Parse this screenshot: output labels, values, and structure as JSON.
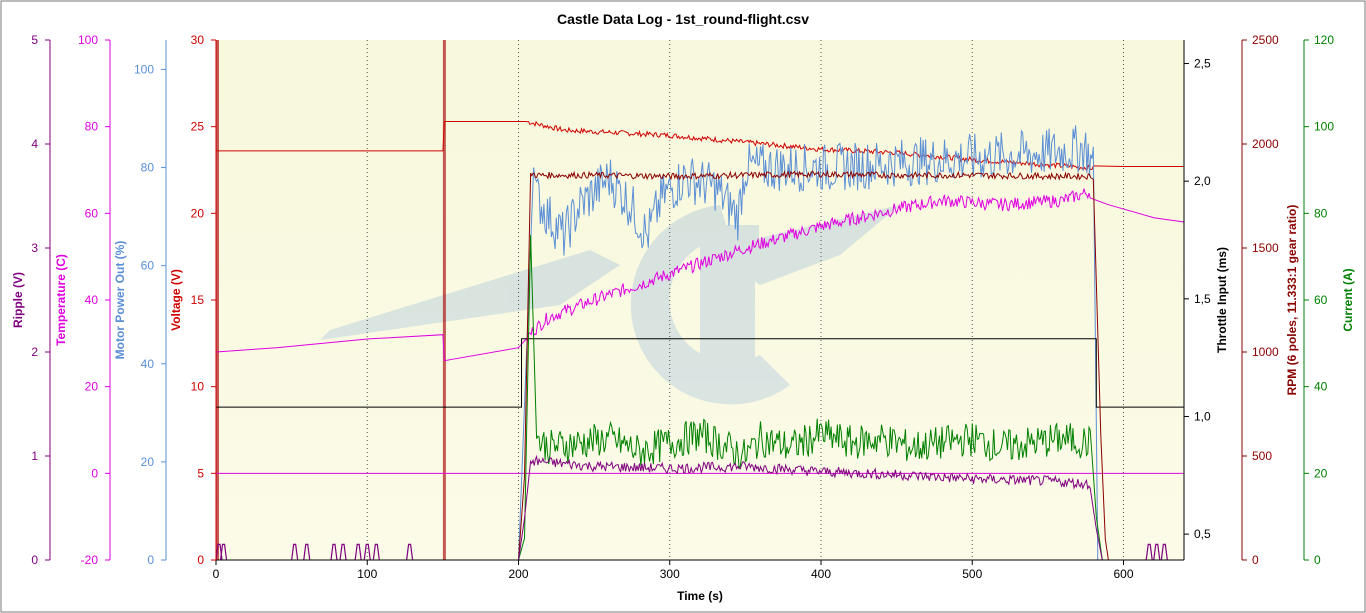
{
  "chart_data": {
    "type": "line",
    "title": "Castle Data Log - 1st_round-flight.csv",
    "xlabel": "Time (s)",
    "xlim": [
      0,
      640
    ],
    "xticks": [
      0,
      100,
      200,
      300,
      400,
      500,
      600
    ],
    "colors": {
      "ripple": "#800080",
      "temperature": "#e000e0",
      "power": "#5b8fd6",
      "voltage": "#d00000",
      "throttle": "#000000",
      "rpm": "#8b0000",
      "current": "#008000"
    },
    "left_axes": [
      {
        "id": "ripple",
        "label": "Ripple (V)",
        "min": 0,
        "max": 5,
        "ticks": [
          "0",
          "1",
          "2",
          "3",
          "4",
          "5"
        ],
        "color": "#800080"
      },
      {
        "id": "temperature",
        "label": "Temperature (C)",
        "min": -20,
        "max": 100,
        "ticks": [
          "-20",
          "0",
          "20",
          "40",
          "60",
          "80",
          "100"
        ],
        "color": "#e000e0"
      },
      {
        "id": "power",
        "label": "Motor Power Out (%)",
        "min": 0,
        "max": 106,
        "ticks": [
          "0",
          "20",
          "40",
          "60",
          "80",
          "100"
        ],
        "color": "#5b8fd6"
      },
      {
        "id": "voltage",
        "label": "Voltage (V)",
        "min": 0,
        "max": 30,
        "ticks": [
          "0",
          "5",
          "10",
          "15",
          "20",
          "25",
          "30"
        ],
        "color": "#d00000"
      }
    ],
    "right_axes": [
      {
        "id": "throttle",
        "label": "Throttle Input (ms)",
        "min": 0.39,
        "max": 2.6,
        "ticks": [
          "0,5",
          "1,0",
          "1,5",
          "2,0",
          "2,5"
        ],
        "tick_values": [
          0.5,
          1.0,
          1.5,
          2.0,
          2.5
        ],
        "color": "#000000"
      },
      {
        "id": "rpm",
        "label": "RPM (6 poles, 11.333:1 gear ratio)",
        "min": 0,
        "max": 2500,
        "ticks": [
          "0",
          "500",
          "1000",
          "1500",
          "2000",
          "2500"
        ],
        "color": "#8b0000"
      },
      {
        "id": "current",
        "label": "Current (A)",
        "min": 0,
        "max": 120,
        "ticks": [
          "0",
          "20",
          "40",
          "60",
          "80",
          "100",
          "120"
        ],
        "color": "#008000"
      }
    ],
    "markers": [
      1,
      151
    ],
    "series": [
      {
        "name": "Voltage",
        "axis": "voltage",
        "points": [
          [
            0,
            23.6
          ],
          [
            150,
            23.6
          ],
          [
            151,
            25.3
          ],
          [
            205,
            25.3
          ],
          [
            230,
            24.8
          ],
          [
            300,
            24.5
          ],
          [
            350,
            24.1
          ],
          [
            400,
            23.7
          ],
          [
            450,
            23.5
          ],
          [
            500,
            23.1
          ],
          [
            550,
            22.8
          ],
          [
            580,
            22.6
          ],
          [
            600,
            22.7
          ],
          [
            640,
            22.7
          ]
        ]
      },
      {
        "name": "Temperature",
        "axis": "temperature",
        "points": [
          [
            0,
            28
          ],
          [
            40,
            29
          ],
          [
            100,
            31
          ],
          [
            150,
            32
          ],
          [
            151,
            26
          ],
          [
            200,
            29
          ],
          [
            205,
            31
          ],
          [
            210,
            33
          ],
          [
            220,
            36
          ],
          [
            250,
            40
          ],
          [
            300,
            46
          ],
          [
            350,
            52
          ],
          [
            400,
            57
          ],
          [
            450,
            61
          ],
          [
            480,
            63
          ],
          [
            520,
            62
          ],
          [
            560,
            63
          ],
          [
            578,
            65
          ],
          [
            590,
            62
          ],
          [
            620,
            59
          ],
          [
            640,
            58
          ]
        ]
      },
      {
        "name": "Motor Power Out",
        "axis": "power",
        "points": [
          [
            0,
            0
          ],
          [
            200,
            0
          ],
          [
            205,
            40
          ],
          [
            210,
            80
          ],
          [
            212,
            74
          ],
          [
            220,
            70
          ],
          [
            230,
            66
          ],
          [
            240,
            72
          ],
          [
            260,
            78
          ],
          [
            275,
            72
          ],
          [
            285,
            66
          ],
          [
            295,
            74
          ],
          [
            310,
            78
          ],
          [
            330,
            76
          ],
          [
            345,
            70
          ],
          [
            350,
            80
          ],
          [
            380,
            80
          ],
          [
            410,
            80
          ],
          [
            450,
            81
          ],
          [
            500,
            82
          ],
          [
            550,
            83
          ],
          [
            575,
            84
          ],
          [
            580,
            80
          ],
          [
            583,
            0
          ],
          [
            640,
            0
          ]
        ]
      },
      {
        "name": "Throttle",
        "axis": "throttle",
        "points": [
          [
            0,
            1.04
          ],
          [
            202,
            1.04
          ],
          [
            202,
            1.33
          ],
          [
            582,
            1.33
          ],
          [
            582,
            1.04
          ],
          [
            640,
            1.04
          ]
        ]
      },
      {
        "name": "RPM",
        "axis": "rpm",
        "points": [
          [
            0,
            0
          ],
          [
            200,
            0
          ],
          [
            204,
            400
          ],
          [
            208,
            1860
          ],
          [
            212,
            1850
          ],
          [
            250,
            1850
          ],
          [
            300,
            1845
          ],
          [
            350,
            1850
          ],
          [
            400,
            1855
          ],
          [
            450,
            1850
          ],
          [
            500,
            1850
          ],
          [
            550,
            1845
          ],
          [
            580,
            1845
          ],
          [
            585,
            600
          ],
          [
            588,
            100
          ],
          [
            590,
            0
          ],
          [
            640,
            0
          ]
        ]
      },
      {
        "name": "Current",
        "axis": "current",
        "points": [
          [
            0,
            0
          ],
          [
            200,
            0
          ],
          [
            204,
            5
          ],
          [
            208,
            75
          ],
          [
            212,
            28
          ],
          [
            220,
            26
          ],
          [
            240,
            27
          ],
          [
            260,
            28
          ],
          [
            280,
            25
          ],
          [
            300,
            27
          ],
          [
            320,
            29
          ],
          [
            350,
            24
          ],
          [
            360,
            28
          ],
          [
            380,
            26
          ],
          [
            400,
            29
          ],
          [
            420,
            27
          ],
          [
            440,
            28
          ],
          [
            460,
            26
          ],
          [
            480,
            27
          ],
          [
            500,
            28
          ],
          [
            520,
            26
          ],
          [
            540,
            27
          ],
          [
            560,
            28
          ],
          [
            578,
            27
          ],
          [
            582,
            10
          ],
          [
            586,
            0
          ],
          [
            640,
            0
          ]
        ]
      },
      {
        "name": "Ripple",
        "axis": "ripple",
        "points": [
          [
            0,
            0
          ],
          [
            200,
            0
          ],
          [
            204,
            0.4
          ],
          [
            208,
            0.95
          ],
          [
            212,
            0.95
          ],
          [
            250,
            0.9
          ],
          [
            300,
            0.88
          ],
          [
            350,
            0.9
          ],
          [
            400,
            0.85
          ],
          [
            450,
            0.82
          ],
          [
            500,
            0.78
          ],
          [
            550,
            0.76
          ],
          [
            578,
            0.73
          ],
          [
            582,
            0.3
          ],
          [
            586,
            0
          ],
          [
            640,
            0
          ]
        ]
      }
    ]
  }
}
